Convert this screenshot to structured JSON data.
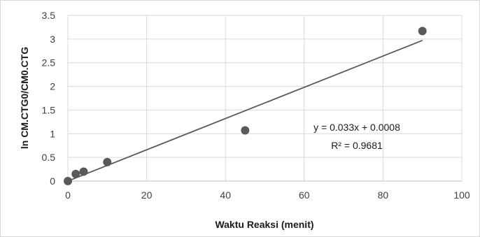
{
  "chart_data": {
    "type": "scatter",
    "title": "",
    "xlabel": "Waktu Reaksi (menit)",
    "ylabel": "ln CM.CTG0/CM0.CTG",
    "xlim": [
      0,
      100
    ],
    "ylim": [
      0,
      3.5
    ],
    "x_ticks": [
      "0",
      "20",
      "40",
      "60",
      "80",
      "100"
    ],
    "y_ticks": [
      "0",
      "0.5",
      "1",
      "1.5",
      "2",
      "2.5",
      "3",
      "3.5"
    ],
    "grid": true,
    "legend": "none",
    "series": [
      {
        "points": [
          {
            "x": 0,
            "y": 0
          },
          {
            "x": 2,
            "y": 0.15
          },
          {
            "x": 4,
            "y": 0.2
          },
          {
            "x": 10,
            "y": 0.4
          },
          {
            "x": 45,
            "y": 1.07
          },
          {
            "x": 90,
            "y": 3.17
          }
        ],
        "color": "#595959"
      }
    ],
    "trendline": {
      "type": "linear",
      "slope": 0.033,
      "intercept": 0.0008,
      "x_range": [
        0,
        90
      ],
      "color": "#595959",
      "equation": "y = 0.033x + 0.0008",
      "r_squared": "R² = 0.9681"
    }
  }
}
